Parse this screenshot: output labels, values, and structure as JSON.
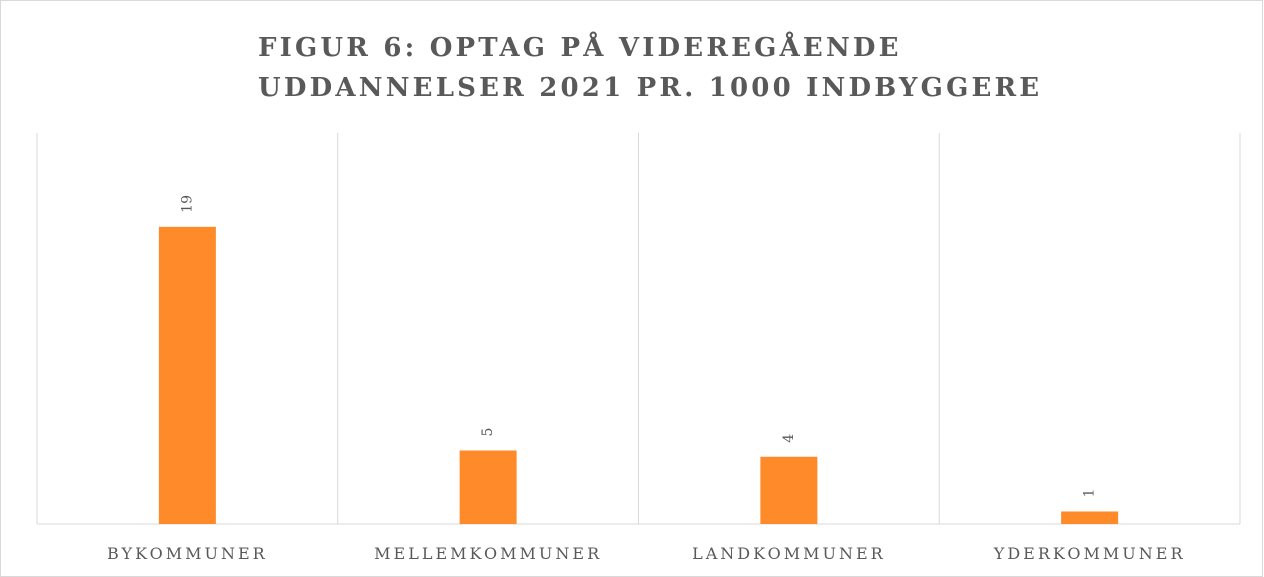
{
  "chart_data": {
    "type": "bar",
    "title": [
      "FIGUR 6: OPTAG PÅ VIDEREGÅENDE",
      "UDDANNELSER 2021 PR. 1000 INDBYGGERE"
    ],
    "categories": [
      "BYKOMMUNER",
      "MELLEMKOMMUNER",
      "LANDKOMMUNER",
      "YDERKOMMUNER"
    ],
    "values": [
      19.0,
      4.7,
      4.3,
      0.8
    ],
    "value_labels": [
      "19",
      "5",
      "4",
      "1"
    ],
    "color": "#ff8a2a",
    "ylim": [
      0,
      25
    ]
  }
}
